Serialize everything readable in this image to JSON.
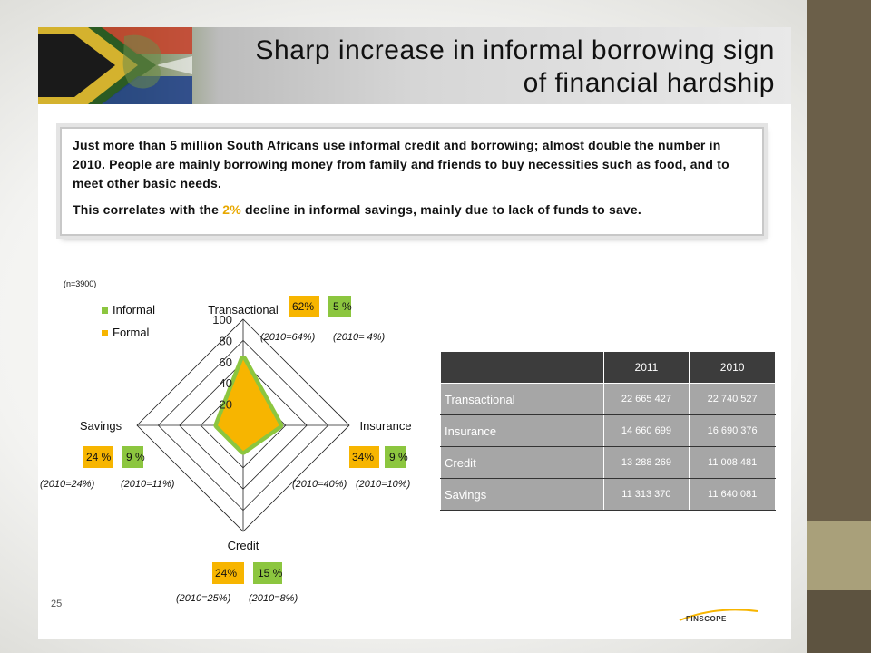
{
  "title": {
    "line1": "Sharp increase in informal borrowing sign",
    "line2": "of financial hardship"
  },
  "note": {
    "paragraph1": "Just more than 5 million South Africans use informal credit and borrowing; almost double the number in 2010. People are mainly borrowing money from family and friends to buy necessities such as food, and to meet other basic needs.",
    "paragraph2_before": "This correlates with the ",
    "paragraph2_highlight": "2%",
    "paragraph2_after": " decline in informal savings, mainly due to lack of funds to save."
  },
  "colors": {
    "informal": "#8cc63f",
    "formal": "#f7b500",
    "table_header": "#3c3c3c",
    "table_cell": "#a6a6a6",
    "right_bar": "#6b5f49"
  },
  "chart_data": {
    "type": "radar",
    "sample_note": "(n=3900)",
    "axes": [
      "Transactional",
      "Insurance",
      "Credit",
      "Savings"
    ],
    "r_ticks": [
      "100",
      "80",
      "60",
      "40",
      "20"
    ],
    "r_range": [
      0,
      100
    ],
    "legend_position": "top-left",
    "series": [
      {
        "name": "Informal",
        "values": [
          5,
          9,
          15,
          9
        ]
      },
      {
        "name": "Formal",
        "values": [
          62,
          34,
          24,
          24
        ]
      }
    ],
    "callouts": [
      {
        "axis": "Transactional",
        "formal": "62%",
        "informal": "5 %",
        "formal_2010": "(2010=64%)",
        "informal_2010": "(2010= 4%)"
      },
      {
        "axis": "Insurance",
        "formal": "34%",
        "informal": "9 %",
        "formal_2010": "(2010=40%)",
        "informal_2010": "(2010=10%)"
      },
      {
        "axis": "Credit",
        "formal": "24%",
        "informal": "15 %",
        "formal_2010": "(2010=25%)",
        "informal_2010": "(2010=8%)"
      },
      {
        "axis": "Savings",
        "formal": "24 %",
        "informal": "9 %",
        "formal_2010": "(2010=24%)",
        "informal_2010": "(2010=11%)"
      }
    ]
  },
  "table": {
    "headers": [
      "",
      "2011",
      "2010"
    ],
    "rows": [
      {
        "label": "Transactional",
        "y2011": "22 665 427",
        "y2010": "22 740 527"
      },
      {
        "label": "Insurance",
        "y2011": "14 660 699",
        "y2010": "16 690 376"
      },
      {
        "label": "Credit",
        "y2011": "13 288 269",
        "y2010": "11 008 481"
      },
      {
        "label": "Savings",
        "y2011": "11 313 370",
        "y2010": "11 640 081"
      }
    ]
  },
  "footer": {
    "page_number": "25",
    "logo_text": "FINSCOPE"
  }
}
